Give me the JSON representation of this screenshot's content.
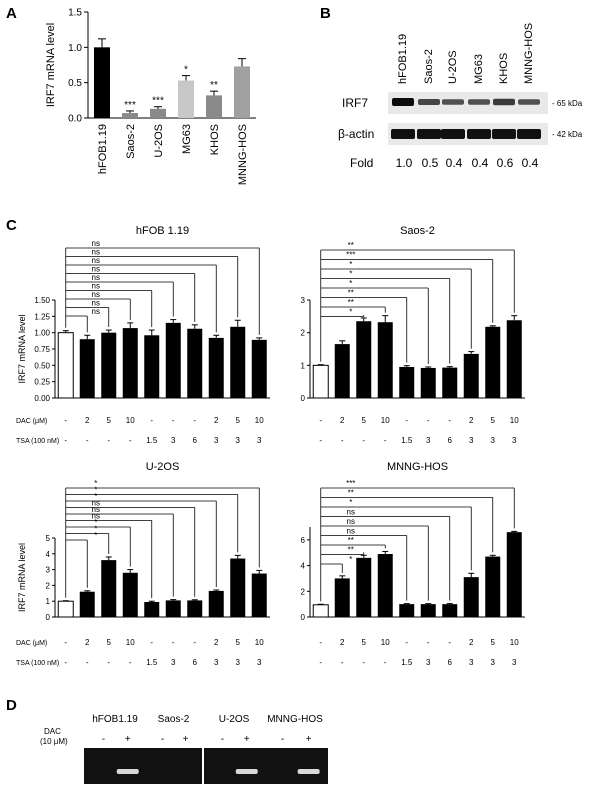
{
  "colors": {
    "black": "#000000",
    "white": "#ffffff",
    "gray": "#8a8a8a",
    "light_gray": "#c8c8c8",
    "mid_gray": "#a0a0a0",
    "blot_bg": "#111111",
    "band": "#d8d8d8"
  },
  "panel_labels": [
    "A",
    "B",
    "C",
    "D"
  ],
  "chart_data": [
    {
      "type": "bar",
      "panel": "A",
      "ylabel": "IRF7 mRNA level",
      "ylim": [
        0,
        1.5
      ],
      "yticks": [
        "0.0",
        "0.5",
        "1.0",
        "1.5"
      ],
      "categories": [
        "hFOB1.19",
        "Saos-2",
        "U-2OS",
        "MG63",
        "KHOS",
        "MNNG-HOS"
      ],
      "values": [
        1.0,
        0.07,
        0.13,
        0.53,
        0.32,
        0.73
      ],
      "errors": [
        0.12,
        0.03,
        0.03,
        0.07,
        0.06,
        0.11
      ],
      "colors": [
        "#000000",
        "#8a8a8a",
        "#8a8a8a",
        "#c8c8c8",
        "#8a8a8a",
        "#a0a0a0"
      ],
      "annotations": [
        "",
        "***",
        "***",
        "*",
        "**",
        ""
      ]
    },
    {
      "type": "bar",
      "panel": "C",
      "title": "hFOB 1.19",
      "ylabel": "IRF7 mRNA level",
      "ylim": [
        0,
        1.5
      ],
      "yticks": [
        "0.00",
        "0.25",
        "0.50",
        "0.75",
        "1.00",
        "1.25",
        "1.50"
      ],
      "values": [
        1.0,
        0.9,
        1.0,
        1.07,
        0.96,
        1.15,
        1.06,
        0.92,
        1.09,
        0.89
      ],
      "errors": [
        0.03,
        0.06,
        0.04,
        0.08,
        0.08,
        0.05,
        0.06,
        0.04,
        0.1,
        0.03
      ],
      "sig": [
        "ns",
        "ns",
        "ns",
        "ns",
        "ns",
        "ns",
        "ns",
        "ns",
        "ns"
      ]
    },
    {
      "type": "bar",
      "panel": "C",
      "title": "Saos-2",
      "ylabel": "",
      "ylim": [
        0,
        3
      ],
      "yticks": [
        "0",
        "1",
        "2",
        "3"
      ],
      "values": [
        1.0,
        1.65,
        2.35,
        2.32,
        0.95,
        0.92,
        0.93,
        1.35,
        2.18,
        2.38
      ],
      "errors": [
        0.02,
        0.1,
        0.1,
        0.2,
        0.04,
        0.03,
        0.03,
        0.07,
        0.03,
        0.14
      ],
      "sig": [
        "*",
        "**",
        "**",
        "*",
        "*",
        "*",
        "***",
        "**"
      ]
    },
    {
      "type": "bar",
      "panel": "C",
      "title": "U-2OS",
      "ylabel": "IRF7 mRNA level",
      "ylim": [
        0,
        5
      ],
      "yticks": [
        "0",
        "1",
        "2",
        "3",
        "4",
        "5"
      ],
      "values": [
        1.0,
        1.6,
        3.6,
        2.8,
        0.95,
        1.05,
        1.05,
        1.65,
        3.7,
        2.75
      ],
      "errors": [
        0.03,
        0.06,
        0.2,
        0.2,
        0.05,
        0.05,
        0.04,
        0.06,
        0.2,
        0.2
      ],
      "sig": [
        "*",
        "*",
        "*",
        "ns",
        "ns",
        "ns",
        "*",
        "*",
        "*"
      ]
    },
    {
      "type": "bar",
      "panel": "C",
      "title": "MNNG-HOS",
      "ylabel": "",
      "ylim": [
        0,
        7
      ],
      "yticks": [
        "0",
        "2",
        "4",
        "6"
      ],
      "values": [
        0.95,
        3.0,
        4.6,
        4.9,
        1.0,
        1.0,
        1.0,
        3.1,
        4.7,
        6.6
      ],
      "errors": [
        0.04,
        0.2,
        0.2,
        0.2,
        0.04,
        0.04,
        0.04,
        0.3,
        0.1,
        0.06
      ],
      "sig": [
        "*",
        "**",
        "**",
        "ns",
        "ns",
        "ns",
        "*",
        "**",
        "***"
      ]
    }
  ],
  "treatment": {
    "dac_label": "DAC (μM)",
    "tsa_label": "TSA (100 nM)",
    "dac_values": [
      "-",
      "2",
      "5",
      "10",
      "-",
      "-",
      "-",
      "2",
      "5",
      "10"
    ],
    "tsa_values": [
      "-",
      "-",
      "-",
      "-",
      "1.5",
      "3",
      "6",
      "3",
      "3",
      "3"
    ]
  },
  "blot_b": {
    "lanes": [
      "hFOB1.19",
      "Saos-2",
      "U-2OS",
      "MG63",
      "KHOS",
      "MNNG-HOS"
    ],
    "row1_label": "IRF7",
    "row2_label": "β-actin",
    "row1_kda": "- 65 kDa",
    "row2_kda": "- 42 kDa",
    "irf7_intensity": [
      1.0,
      0.5,
      0.4,
      0.4,
      0.6,
      0.4
    ],
    "fold_label": "Fold",
    "fold_values": [
      "1.0",
      "0.5",
      "0.4",
      "0.4",
      "0.6",
      "0.4"
    ]
  },
  "gel_d": {
    "dac_label": "DAC",
    "dac_sub": "(10 μM)",
    "groups": [
      "hFOB1.19",
      "Saos-2",
      "U-2OS",
      "MNNG-HOS"
    ],
    "signs": [
      "-",
      "+"
    ],
    "band_present": [
      [
        false,
        true
      ],
      [
        false,
        false
      ],
      [
        false,
        true
      ],
      [
        false,
        true
      ]
    ]
  }
}
